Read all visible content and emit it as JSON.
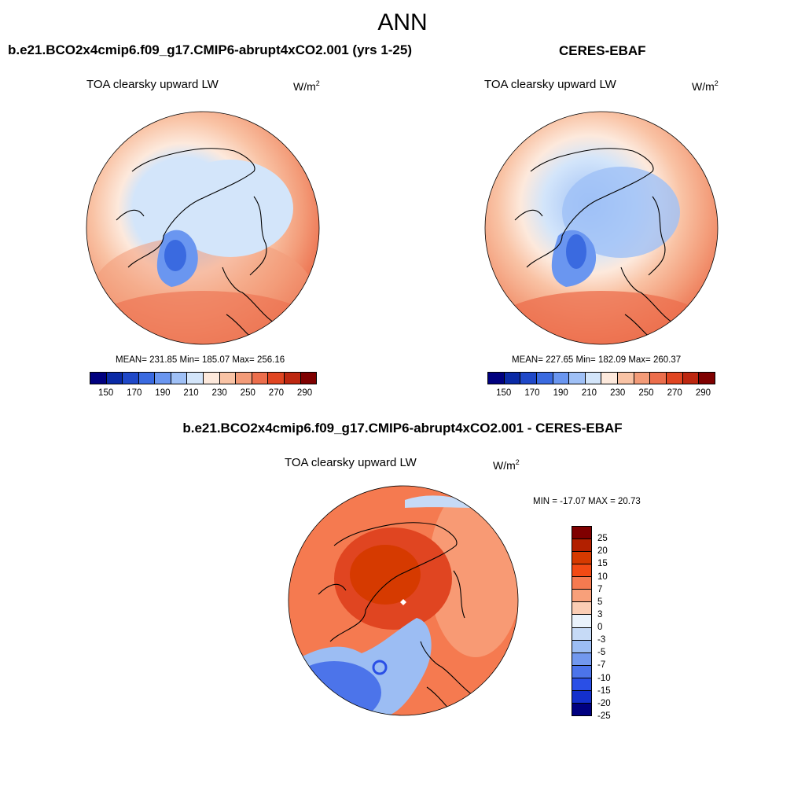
{
  "title": "ANN",
  "panels": [
    {
      "heading": "b.e21.BCO2x4cmip6.f09_g17.CMIP6-abrupt4xCO2.001 (yrs 1-25)",
      "variable": "TOA clearsky upward LW",
      "units_base": "W/m",
      "units_exp": "2",
      "stats": "MEAN= 231.85  Min= 185.07  Max= 256.16",
      "colorbar_ticks": [
        "150",
        "170",
        "190",
        "210",
        "230",
        "250",
        "270",
        "290"
      ]
    },
    {
      "heading": "CERES-EBAF",
      "variable": "TOA clearsky upward LW",
      "units_base": "W/m",
      "units_exp": "2",
      "stats": "MEAN= 227.65  Min= 182.09  Max= 260.37",
      "colorbar_ticks": [
        "150",
        "170",
        "190",
        "210",
        "230",
        "250",
        "270",
        "290"
      ]
    },
    {
      "heading": "b.e21.BCO2x4cmip6.f09_g17.CMIP6-abrupt4xCO2.001 - CERES-EBAF",
      "variable": "TOA clearsky upward LW",
      "units_base": "W/m",
      "units_exp": "2",
      "stats": "MIN = -17.07 MAX =  20.73",
      "colorbar_ticks": [
        "25",
        "20",
        "15",
        "10",
        "7",
        "5",
        "3",
        "0",
        "-3",
        "-5",
        "-7",
        "-10",
        "-15",
        "-20",
        "-25"
      ]
    }
  ],
  "colors": {
    "abs_scale": [
      "#00007f",
      "#0a2aa6",
      "#1f48c8",
      "#3a6ae0",
      "#6a96f0",
      "#9fc0f6",
      "#d3e5fa",
      "#fde9dc",
      "#f9c3a5",
      "#f39b78",
      "#ec6e4c",
      "#e04521",
      "#bd2710",
      "#7f0000"
    ],
    "diff_scale": [
      "#7f0000",
      "#b22000",
      "#d63a00",
      "#f24a14",
      "#f57a50",
      "#f8a07a",
      "#fbcdb4",
      "#eaf2fb",
      "#c6daf6",
      "#9cbdf3",
      "#7298ee",
      "#4c74ea",
      "#2a4fe6",
      "#1430cc",
      "#000080"
    ]
  }
}
